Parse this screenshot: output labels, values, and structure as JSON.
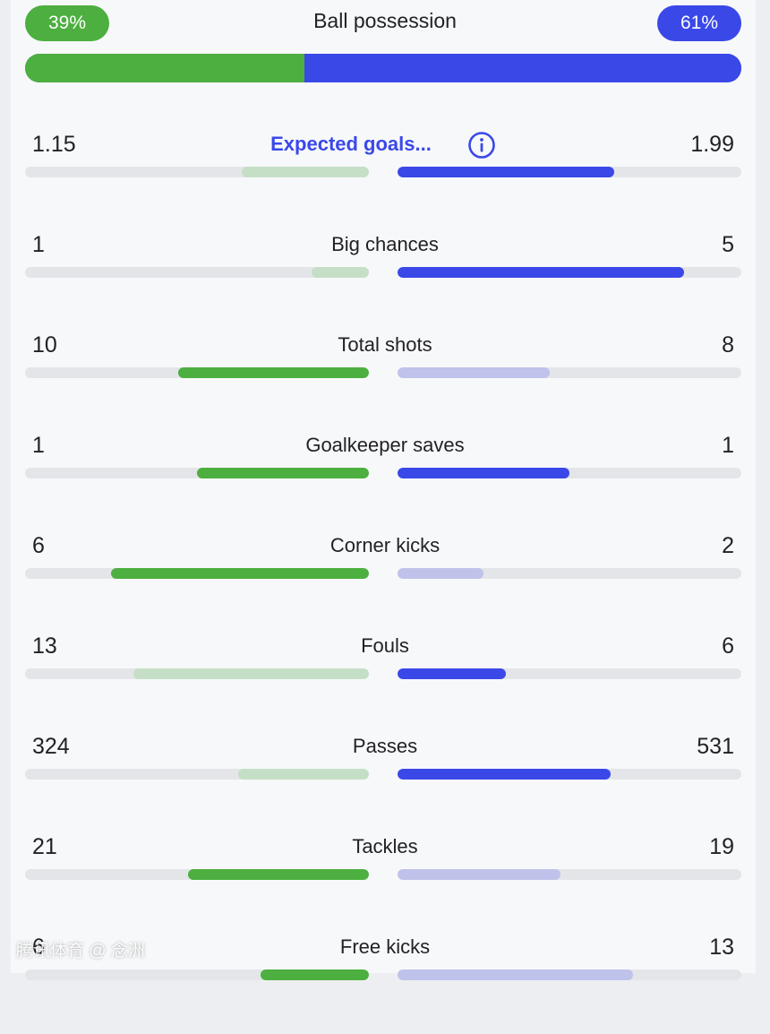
{
  "possession": {
    "title": "Ball possession",
    "home_label": "39%",
    "away_label": "61%",
    "home_fraction": 0.39,
    "away_fraction": 0.61
  },
  "colors": {
    "home_strong": "#4caf3f",
    "home_weak": "#c5dfc6",
    "away_strong": "#3a48e8",
    "away_weak": "#bfc2ea",
    "track": "#e4e5e9"
  },
  "stats": [
    {
      "id": "expected-goals",
      "label": "Expected goals...",
      "home": "1.15",
      "away": "1.99",
      "home_fraction": 0.37,
      "away_fraction": 0.63,
      "leader": "away",
      "info": true
    },
    {
      "id": "big-chances",
      "label": "Big chances",
      "home": "1",
      "away": "5",
      "home_fraction": 0.167,
      "away_fraction": 0.833,
      "leader": "away"
    },
    {
      "id": "total-shots",
      "label": "Total shots",
      "home": "10",
      "away": "8",
      "home_fraction": 0.556,
      "away_fraction": 0.444,
      "leader": "home"
    },
    {
      "id": "goalkeeper-saves",
      "label": "Goalkeeper saves",
      "home": "1",
      "away": "1",
      "home_fraction": 0.5,
      "away_fraction": 0.5,
      "leader": "both"
    },
    {
      "id": "corner-kicks",
      "label": "Corner kicks",
      "home": "6",
      "away": "2",
      "home_fraction": 0.75,
      "away_fraction": 0.25,
      "leader": "home"
    },
    {
      "id": "fouls",
      "label": "Fouls",
      "home": "13",
      "away": "6",
      "home_fraction": 0.684,
      "away_fraction": 0.316,
      "leader": "away"
    },
    {
      "id": "passes",
      "label": "Passes",
      "home": "324",
      "away": "531",
      "home_fraction": 0.379,
      "away_fraction": 0.621,
      "leader": "away"
    },
    {
      "id": "tackles",
      "label": "Tackles",
      "home": "21",
      "away": "19",
      "home_fraction": 0.525,
      "away_fraction": 0.475,
      "leader": "home"
    },
    {
      "id": "free-kicks",
      "label": "Free kicks",
      "home": "6",
      "away": "13",
      "home_fraction": 0.316,
      "away_fraction": 0.684,
      "leader": "home"
    }
  ],
  "watermark": "腾讯体育 @ 念洲"
}
